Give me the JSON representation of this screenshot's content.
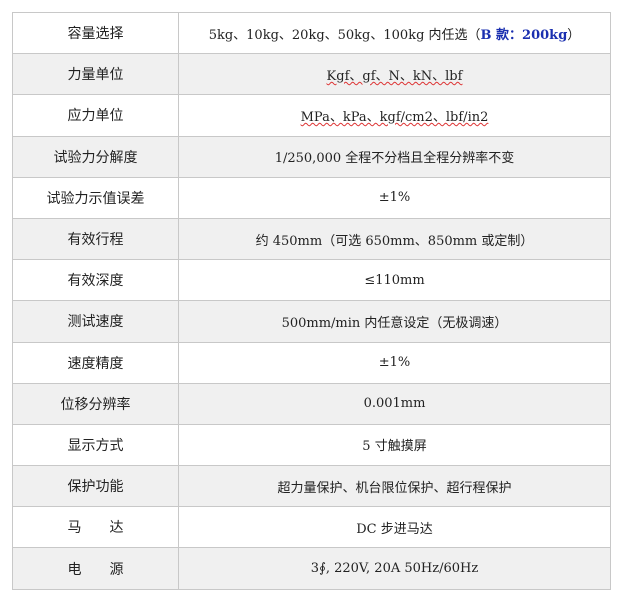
{
  "rows": [
    {
      "label": "容量选择",
      "value": "5kg、10kg、20kg、50kg、100kg 内任选（",
      "highlight": "B 款：200kg",
      "value_end": "）"
    },
    {
      "label": "力量单位",
      "value": "Kgf、gf、N、kN、lbf"
    },
    {
      "label": "应力单位",
      "value": "MPa、kPa、kgf/cm2、lbf/in2"
    },
    {
      "label": "试验力分解度",
      "value": "1/250,000 全程不分档且全程分辨率不变"
    },
    {
      "label": "试验力示值误差",
      "value": "±1%"
    },
    {
      "label": "有效行程",
      "value": "约 450mm（可选 650mm、850mm 或定制）"
    },
    {
      "label": "有效深度",
      "value": "≤110mm"
    },
    {
      "label": "测试速度",
      "value": "500mm/min 内任意设定（无极调速）"
    },
    {
      "label": "速度精度",
      "value": "±1%"
    },
    {
      "label": "位移分辨率",
      "value": "0.001mm"
    },
    {
      "label": "显示方式",
      "value": "5 寸触摸屏"
    },
    {
      "label": "保护功能",
      "value": "超力量保护、机台限位保护、超行程保护"
    },
    {
      "label": "马　　达",
      "value": "DC 步进马达"
    },
    {
      "label": "电　　源",
      "value": "3∮, 220V, 20A  50Hz/60Hz"
    }
  ],
  "colors": {
    "highlight": "#1a2fb0",
    "alt_row": "#f0f0f0",
    "border": "#c8c8c8"
  }
}
